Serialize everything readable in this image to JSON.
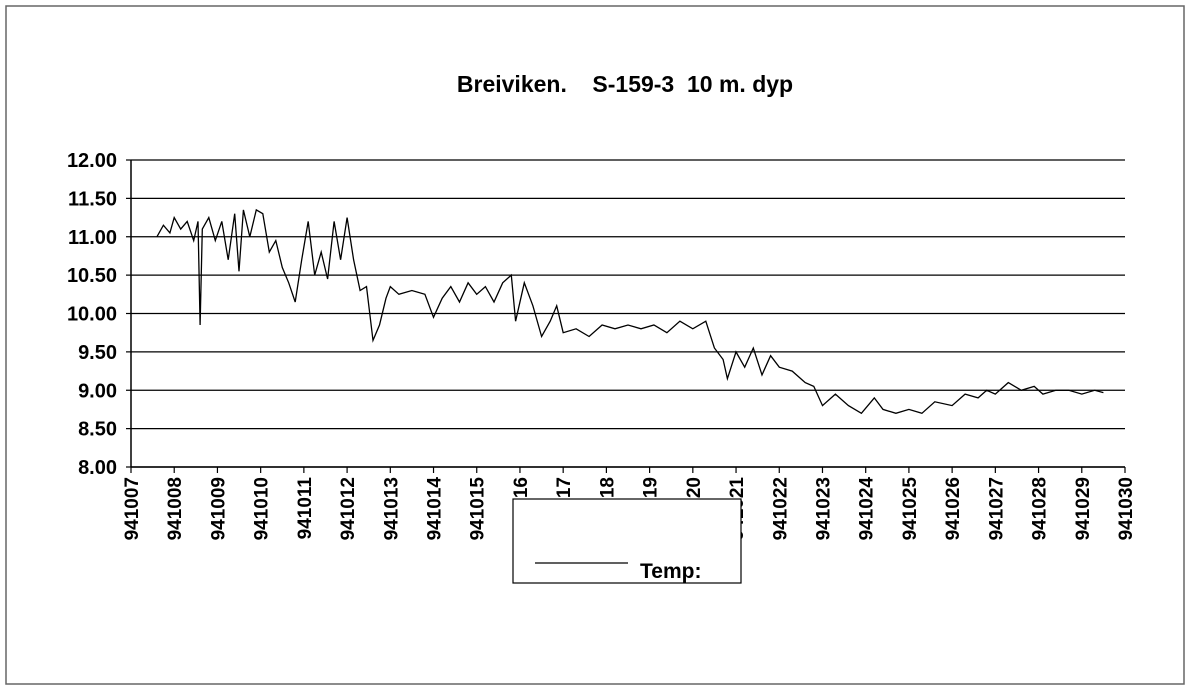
{
  "chart_data": {
    "type": "line",
    "title": "Breiviken.    S-159-3  10 m. dyp",
    "x": [
      941007.6,
      941007.75,
      941007.9,
      941008.0,
      941008.15,
      941008.3,
      941008.45,
      941008.55,
      941008.6,
      941008.65,
      941008.8,
      941008.95,
      941009.1,
      941009.25,
      941009.4,
      941009.5,
      941009.6,
      941009.75,
      941009.9,
      941010.05,
      941010.2,
      941010.35,
      941010.5,
      941010.65,
      941010.8,
      941010.95,
      941011.1,
      941011.25,
      941011.4,
      941011.55,
      941011.7,
      941011.85,
      941012.0,
      941012.15,
      941012.3,
      941012.45,
      941012.6,
      941012.75,
      941012.9,
      941013.0,
      941013.2,
      941013.5,
      941013.8,
      941014.0,
      941014.2,
      941014.4,
      941014.6,
      941014.8,
      941015.0,
      941015.2,
      941015.4,
      941015.6,
      941015.8,
      941015.9,
      941016.1,
      941016.3,
      941016.5,
      941016.7,
      941016.85,
      941017.0,
      941017.3,
      941017.6,
      941017.9,
      941018.2,
      941018.5,
      941018.8,
      941019.1,
      941019.4,
      941019.7,
      941020.0,
      941020.3,
      941020.5,
      941020.7,
      941020.8,
      941021.0,
      941021.2,
      941021.4,
      941021.6,
      941021.8,
      941022.0,
      941022.3,
      941022.6,
      941022.8,
      941023.0,
      941023.3,
      941023.6,
      941023.9,
      941024.2,
      941024.4,
      941024.7,
      941025.0,
      941025.3,
      941025.6,
      941026.0,
      941026.3,
      941026.6,
      941026.8,
      941027.0,
      941027.3,
      941027.6,
      941027.9,
      941028.1,
      941028.4,
      941028.7,
      941029.0,
      941029.3,
      941029.5
    ],
    "series": [
      {
        "name": "Temp:",
        "color": "#000000",
        "values": [
          11.0,
          11.15,
          11.05,
          11.25,
          11.1,
          11.2,
          10.95,
          11.2,
          9.85,
          11.1,
          11.25,
          10.95,
          11.2,
          10.7,
          11.3,
          10.55,
          11.35,
          11.0,
          11.35,
          11.3,
          10.8,
          10.95,
          10.6,
          10.4,
          10.15,
          10.7,
          11.2,
          10.5,
          10.8,
          10.45,
          11.2,
          10.7,
          11.25,
          10.7,
          10.3,
          10.35,
          9.65,
          9.85,
          10.2,
          10.35,
          10.25,
          10.3,
          10.25,
          9.95,
          10.2,
          10.35,
          10.15,
          10.4,
          10.25,
          10.35,
          10.15,
          10.4,
          10.5,
          9.9,
          10.4,
          10.1,
          9.7,
          9.9,
          10.1,
          9.75,
          9.8,
          9.7,
          9.85,
          9.8,
          9.85,
          9.8,
          9.85,
          9.75,
          9.9,
          9.8,
          9.9,
          9.55,
          9.4,
          9.15,
          9.5,
          9.3,
          9.55,
          9.2,
          9.45,
          9.3,
          9.25,
          9.1,
          9.05,
          8.8,
          8.95,
          8.8,
          8.7,
          8.9,
          8.75,
          8.7,
          8.75,
          8.7,
          8.85,
          8.8,
          8.95,
          8.9,
          9.0,
          8.95,
          9.1,
          9.0,
          9.05,
          8.95,
          9.0,
          9.0,
          8.95,
          9.0,
          8.97
        ]
      }
    ],
    "xlim": [
      941007,
      941030
    ],
    "xticks": [
      941007,
      941008,
      941009,
      941010,
      941011,
      941012,
      941013,
      941014,
      941015,
      941016,
      941017,
      941018,
      941019,
      941020,
      941021,
      941022,
      941023,
      941024,
      941025,
      941026,
      941027,
      941028,
      941029,
      941030
    ],
    "ylim": [
      8,
      12
    ],
    "yticks": [
      {
        "value": 8,
        "label": "8.00"
      },
      {
        "value": 8.5,
        "label": "8.50"
      },
      {
        "value": 9,
        "label": "9.00"
      },
      {
        "value": 9.5,
        "label": "9.50"
      },
      {
        "value": 10,
        "label": "10.00"
      },
      {
        "value": 10.5,
        "label": "10.50"
      },
      {
        "value": 11,
        "label": "11.00"
      },
      {
        "value": 11.5,
        "label": "11.50"
      },
      {
        "value": 12,
        "label": "12.00"
      }
    ],
    "grid": true,
    "legend": "bottom"
  }
}
